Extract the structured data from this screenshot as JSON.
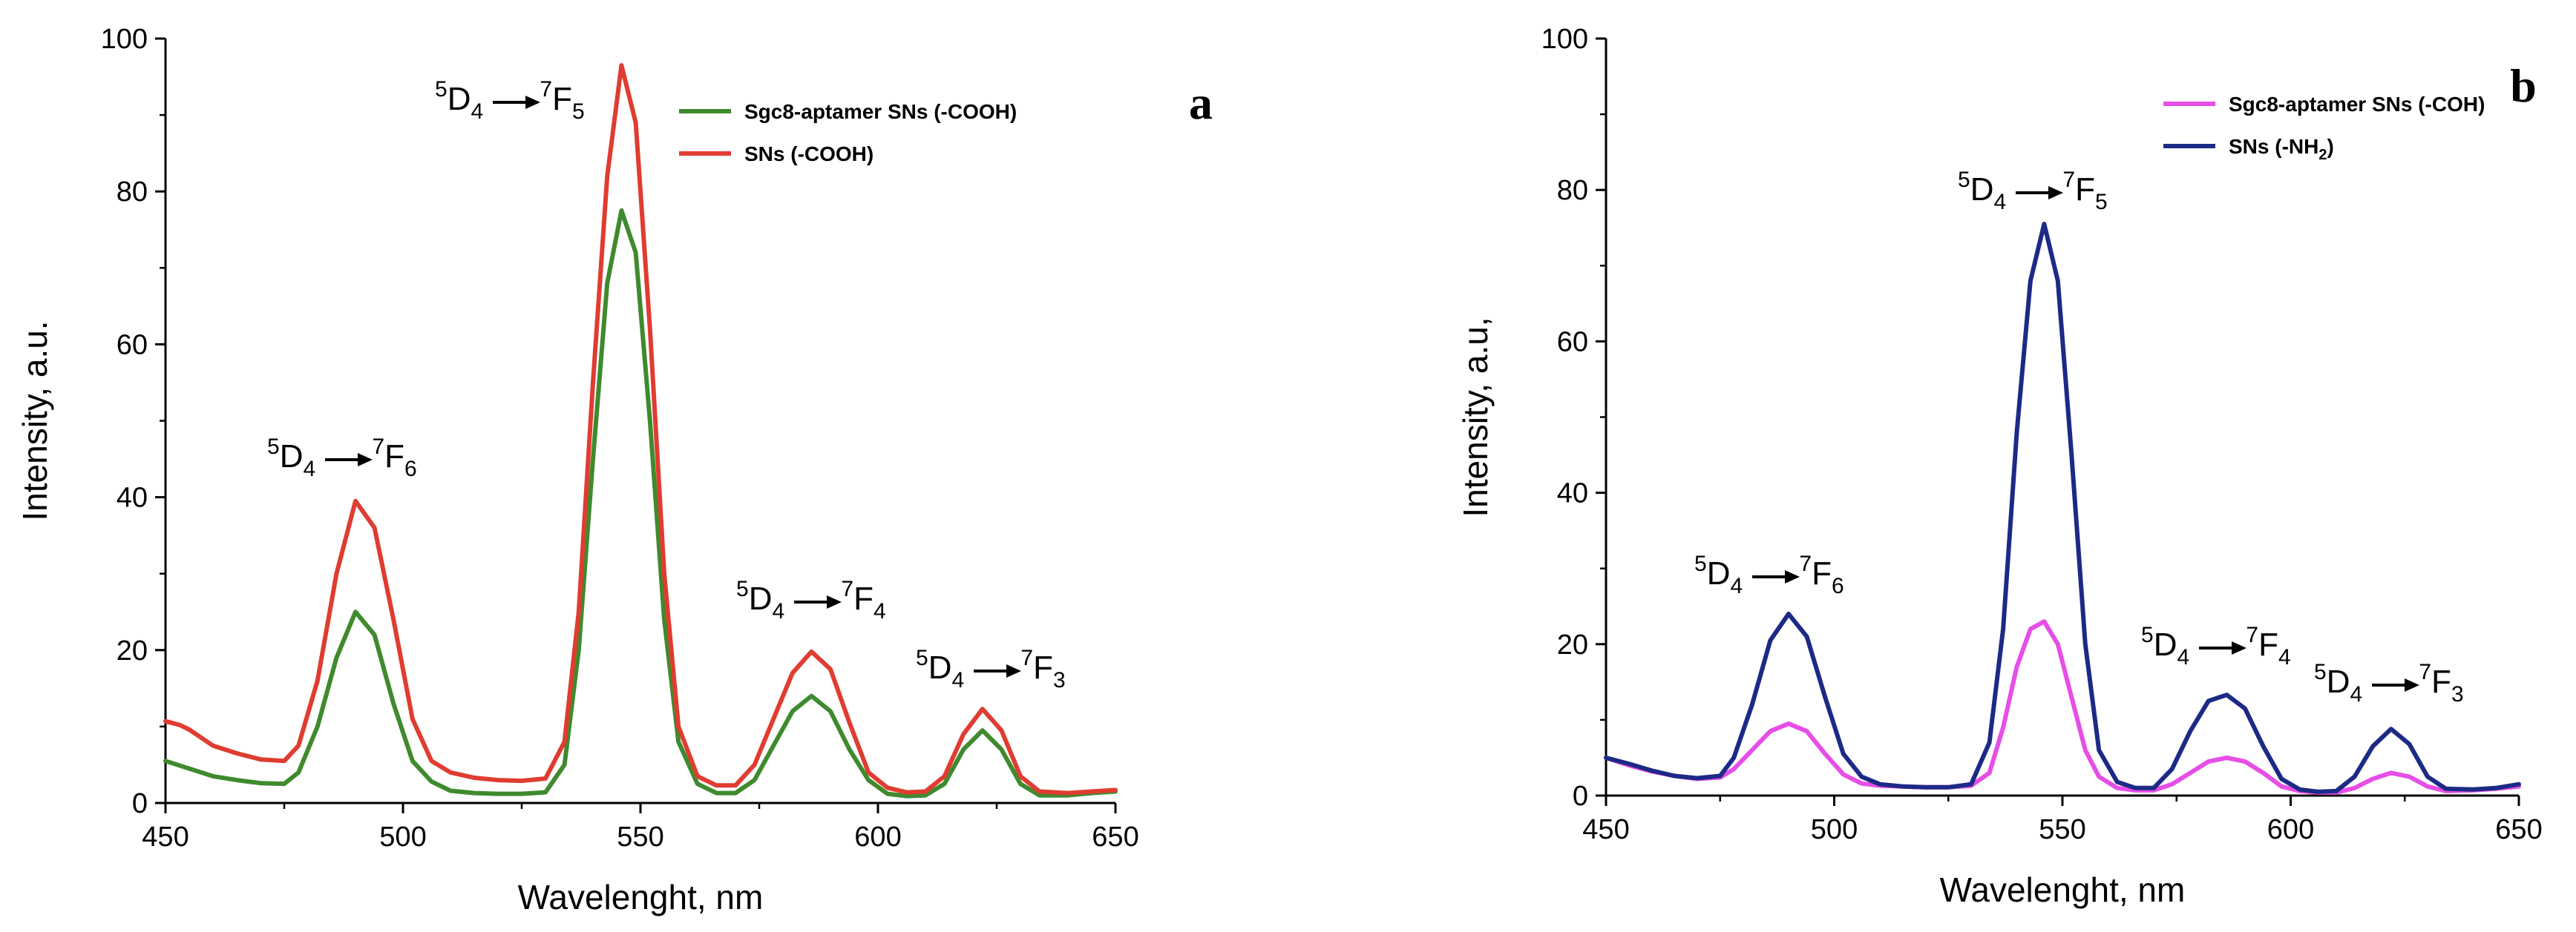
{
  "chart_data": [
    {
      "type": "line",
      "panel_label": "a",
      "xlabel": "Wavelenght, nm",
      "ylabel": "Intensity, a.u.",
      "xlim": [
        450,
        650
      ],
      "ylim": [
        0,
        100
      ],
      "x_ticks": [
        450,
        500,
        550,
        600,
        650
      ],
      "y_ticks": [
        0,
        20,
        40,
        60,
        80,
        100
      ],
      "legend_position": "top-right",
      "series": [
        {
          "name": "Sgc8-aptamer SNs (-COOH)",
          "color": "#3f8a2e",
          "x": [
            450,
            455,
            460,
            465,
            470,
            475,
            478,
            482,
            486,
            490,
            494,
            498,
            502,
            506,
            510,
            515,
            520,
            525,
            530,
            534,
            537,
            540,
            543,
            546,
            549,
            552,
            555,
            558,
            562,
            566,
            570,
            574,
            578,
            582,
            586,
            590,
            594,
            598,
            602,
            606,
            610,
            614,
            618,
            622,
            626,
            630,
            634,
            640,
            645,
            650
          ],
          "y": [
            5.5,
            4.5,
            3.5,
            3.0,
            2.6,
            2.5,
            4.0,
            10.0,
            19.0,
            25.0,
            22.0,
            13.0,
            5.5,
            2.8,
            1.6,
            1.3,
            1.2,
            1.2,
            1.4,
            5.0,
            20.0,
            45.0,
            68.0,
            77.5,
            72.0,
            50.0,
            24.0,
            8.0,
            2.5,
            1.3,
            1.3,
            3.0,
            7.5,
            12.0,
            14.0,
            12.0,
            7.0,
            3.0,
            1.2,
            0.9,
            1.0,
            2.5,
            7.0,
            9.5,
            7.0,
            2.5,
            1.0,
            1.0,
            1.3,
            1.5
          ]
        },
        {
          "name": "SNs (-COOH)",
          "color": "#e03c31",
          "x": [
            450,
            453,
            455,
            460,
            465,
            470,
            475,
            478,
            482,
            486,
            490,
            494,
            498,
            502,
            506,
            510,
            515,
            520,
            525,
            530,
            534,
            537,
            540,
            543,
            546,
            549,
            552,
            555,
            558,
            562,
            566,
            570,
            574,
            578,
            582,
            586,
            590,
            594,
            598,
            602,
            606,
            610,
            614,
            618,
            622,
            626,
            630,
            634,
            640,
            645,
            650
          ],
          "y": [
            10.7,
            10.2,
            9.6,
            7.5,
            6.5,
            5.7,
            5.5,
            7.5,
            16.0,
            30.0,
            39.5,
            36.0,
            24.0,
            11.0,
            5.5,
            4.0,
            3.3,
            3.0,
            2.9,
            3.2,
            8.0,
            25.0,
            55.0,
            82.0,
            96.5,
            89.0,
            62.0,
            30.0,
            10.0,
            3.5,
            2.3,
            2.3,
            5.0,
            11.0,
            17.0,
            19.8,
            17.5,
            10.5,
            4.0,
            2.0,
            1.4,
            1.5,
            3.5,
            9.0,
            12.3,
            9.5,
            3.5,
            1.5,
            1.3,
            1.5,
            1.7
          ]
        }
      ],
      "annotations": [
        {
          "base": "D",
          "sup_left": "5",
          "sub": "4",
          "target": "F",
          "target_sup": "7",
          "target_sub": "5",
          "near_x": 527,
          "near_y": 92
        },
        {
          "base": "D",
          "sup_left": "5",
          "sub": "4",
          "target": "F",
          "target_sup": "7",
          "target_sub": "6",
          "near_x": 486,
          "near_y": 44
        },
        {
          "base": "D",
          "sup_left": "5",
          "sub": "4",
          "target": "F",
          "target_sup": "7",
          "target_sub": "4",
          "near_x": 582,
          "near_y": 26
        },
        {
          "base": "D",
          "sup_left": "5",
          "sub": "4",
          "target": "F",
          "target_sup": "7",
          "target_sub": "3",
          "near_x": 617,
          "near_y": 16
        }
      ]
    },
    {
      "type": "line",
      "panel_label": "b",
      "xlabel": "Wavelenght, nm",
      "ylabel": "Intensity, a.u,",
      "xlim": [
        450,
        650
      ],
      "ylim": [
        0,
        100
      ],
      "x_ticks": [
        450,
        500,
        550,
        600,
        650
      ],
      "y_ticks": [
        0,
        20,
        40,
        60,
        80,
        100
      ],
      "legend_position": "top-right",
      "series": [
        {
          "name": "Sgc8-aptamer SNs (-COH)",
          "legend_label": "Sgc8-aptamer SNs (-COH)",
          "color": "#e64ee6",
          "x": [
            450,
            455,
            460,
            465,
            470,
            475,
            478,
            482,
            486,
            490,
            494,
            498,
            502,
            506,
            510,
            515,
            520,
            525,
            530,
            534,
            537,
            540,
            543,
            546,
            549,
            552,
            555,
            558,
            562,
            566,
            570,
            574,
            578,
            582,
            586,
            590,
            594,
            598,
            602,
            606,
            610,
            614,
            618,
            622,
            626,
            630,
            634,
            640,
            645,
            650
          ],
          "y": [
            5.0,
            4.0,
            3.2,
            2.6,
            2.2,
            2.4,
            3.5,
            6.0,
            8.5,
            9.5,
            8.5,
            5.5,
            2.8,
            1.6,
            1.3,
            1.2,
            1.1,
            1.1,
            1.3,
            3.0,
            9.0,
            17.0,
            22.0,
            23.0,
            20.0,
            13.0,
            6.0,
            2.5,
            1.0,
            0.7,
            0.7,
            1.5,
            3.0,
            4.5,
            5.0,
            4.5,
            3.0,
            1.2,
            0.6,
            0.4,
            0.4,
            1.0,
            2.2,
            3.0,
            2.5,
            1.2,
            0.6,
            0.7,
            0.9,
            1.2
          ]
        },
        {
          "name": "SNs (-NH2)",
          "legend_label": "SNs (-NH",
          "legend_sub": "2",
          "legend_suffix": ")",
          "color": "#1c2a86",
          "x": [
            450,
            455,
            460,
            465,
            470,
            475,
            478,
            482,
            486,
            490,
            494,
            498,
            502,
            506,
            510,
            515,
            520,
            525,
            530,
            534,
            537,
            540,
            543,
            546,
            549,
            552,
            555,
            558,
            562,
            566,
            570,
            574,
            578,
            582,
            586,
            590,
            594,
            598,
            602,
            606,
            610,
            614,
            618,
            622,
            626,
            630,
            634,
            640,
            645,
            650
          ],
          "y": [
            5.0,
            4.2,
            3.3,
            2.6,
            2.3,
            2.6,
            5.0,
            12.0,
            20.5,
            24.0,
            21.0,
            13.0,
            5.5,
            2.5,
            1.5,
            1.2,
            1.1,
            1.1,
            1.5,
            7.0,
            22.0,
            48.0,
            68.0,
            75.5,
            68.0,
            45.0,
            20.0,
            6.0,
            1.8,
            1.0,
            1.0,
            3.5,
            8.5,
            12.5,
            13.3,
            11.5,
            6.5,
            2.2,
            0.8,
            0.5,
            0.6,
            2.5,
            6.5,
            8.8,
            6.8,
            2.5,
            0.9,
            0.8,
            1.0,
            1.5
          ]
        }
      ],
      "annotations": [
        {
          "base": "D",
          "sup_left": "5",
          "sub": "4",
          "target": "F",
          "target_sup": "7",
          "target_sub": "5",
          "near_x": 537,
          "near_y": 79
        },
        {
          "base": "D",
          "sup_left": "5",
          "sub": "4",
          "target": "F",
          "target_sup": "7",
          "target_sub": "6",
          "near_x": 487,
          "near_y": 28
        },
        {
          "base": "D",
          "sup_left": "5",
          "sub": "4",
          "target": "F",
          "target_sup": "7",
          "target_sub": "4",
          "near_x": 584,
          "near_y": 19
        },
        {
          "base": "D",
          "sup_left": "5",
          "sub": "4",
          "target": "F",
          "target_sup": "7",
          "target_sub": "3",
          "near_x": 616,
          "near_y": 14
        }
      ]
    }
  ]
}
